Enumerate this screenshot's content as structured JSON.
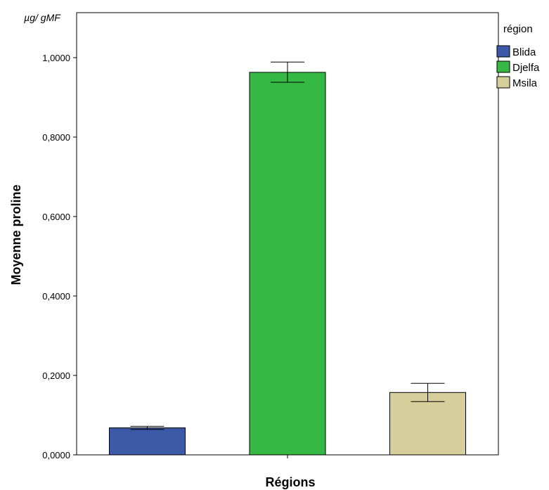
{
  "chart_data": {
    "type": "bar",
    "categories": [
      "Blida",
      "Djelfa",
      "Msila"
    ],
    "values": [
      0.068,
      0.963,
      0.157
    ],
    "error_low": [
      0.064,
      0.938,
      0.134
    ],
    "error_high": [
      0.072,
      0.989,
      0.18
    ],
    "colors": [
      "#3d5aa8",
      "#36b844",
      "#d6cf9b"
    ],
    "xlabel": "Régions",
    "ylabel": "Moyenne proline",
    "unit": "µg/ gMF",
    "ylim": [
      0,
      1.0
    ],
    "yticks": [
      0.0,
      0.2,
      0.4,
      0.6,
      0.8,
      1.0
    ],
    "ytick_labels": [
      "0,0000",
      "0,2000",
      "0,4000",
      "0,6000",
      "0,8000",
      "1,0000"
    ],
    "grid": false,
    "legend": {
      "title": "région",
      "placement": "top-right",
      "entries": [
        "Blida",
        "Djelfa",
        "Msila"
      ]
    }
  }
}
